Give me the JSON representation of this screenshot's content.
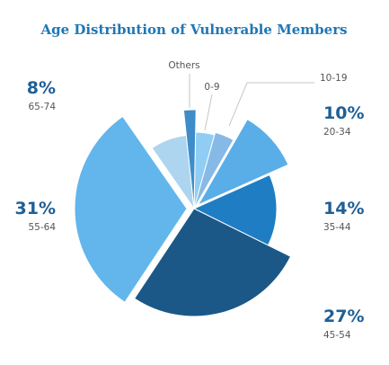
{
  "chart_data": {
    "type": "pie",
    "title": "Age Distribution of Vulnerable Members",
    "slices": [
      {
        "label": "0-9",
        "pct": 4,
        "pct_text": "",
        "color": "#8fcdf4"
      },
      {
        "label": "10-19",
        "pct": 4,
        "pct_text": "",
        "color": "#86b9e6"
      },
      {
        "label": "20-34",
        "pct": 10,
        "pct_text": "10%",
        "color": "#5aaee8"
      },
      {
        "label": "35-44",
        "pct": 14,
        "pct_text": "14%",
        "color": "#1f7dc3"
      },
      {
        "label": "45-54",
        "pct": 27,
        "pct_text": "27%",
        "color": "#1b5887"
      },
      {
        "label": "55-64",
        "pct": 31,
        "pct_text": "31%",
        "color": "#62b6ec"
      },
      {
        "label": "65-74",
        "pct": 8,
        "pct_text": "8%",
        "color": "#add5ef"
      },
      {
        "label": "Others",
        "pct": 2,
        "pct_text": "",
        "color": "#3e8dc9"
      }
    ]
  }
}
